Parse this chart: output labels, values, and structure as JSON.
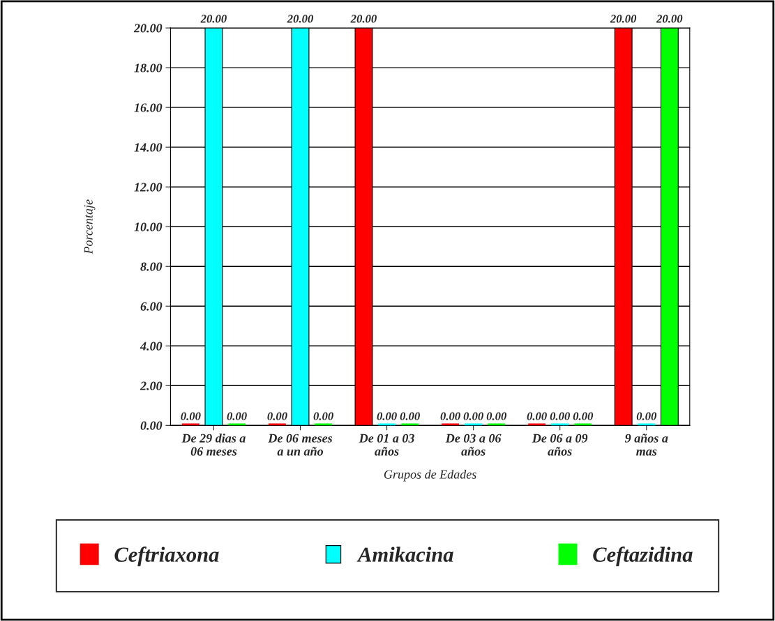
{
  "chart_data": {
    "type": "bar",
    "categories": [
      "De 29 dias a\n06 meses",
      "De 06 meses\na un año",
      "De 01 a 03\naños",
      "De 03 a 06\naños",
      "De 06 a 09\naños",
      "9 años a\nmas"
    ],
    "series": [
      {
        "name": "Ceftriaxona",
        "color": "#ff0000",
        "values": [
          0,
          0,
          20,
          0,
          0,
          20
        ],
        "value_labels": [
          "0.00",
          "0.00",
          "20.00",
          "0.00",
          "0.00",
          "20.00"
        ]
      },
      {
        "name": "Amikacina",
        "color": "#00ffff",
        "values": [
          20,
          20,
          0,
          0,
          0,
          0
        ],
        "value_labels": [
          "20.00",
          "20.00",
          "0.00",
          "0.00",
          "0.00",
          "0.00"
        ]
      },
      {
        "name": "Ceftazidina",
        "color": "#00ff00",
        "values": [
          0,
          0,
          0,
          0,
          0,
          20
        ],
        "value_labels": [
          "0.00",
          "0.00",
          "0.00",
          "0.00",
          "0.00",
          "20.00"
        ]
      }
    ],
    "xlabel": "Grupos de Edades",
    "ylabel": "Porcentaje",
    "ylim": [
      0,
      20
    ],
    "yticks": [
      {
        "value": 0,
        "label": "0.00"
      },
      {
        "value": 2,
        "label": "2.00"
      },
      {
        "value": 4,
        "label": "4.00"
      },
      {
        "value": 6,
        "label": "6.00"
      },
      {
        "value": 8,
        "label": "8.00"
      },
      {
        "value": 10,
        "label": "10.00"
      },
      {
        "value": 12,
        "label": "12.00"
      },
      {
        "value": 14,
        "label": "14.00"
      },
      {
        "value": 16,
        "label": "16.00"
      },
      {
        "value": 18,
        "label": "18.00"
      },
      {
        "value": 20,
        "label": "20.00"
      }
    ],
    "grid": "y",
    "legend": "bottom"
  }
}
